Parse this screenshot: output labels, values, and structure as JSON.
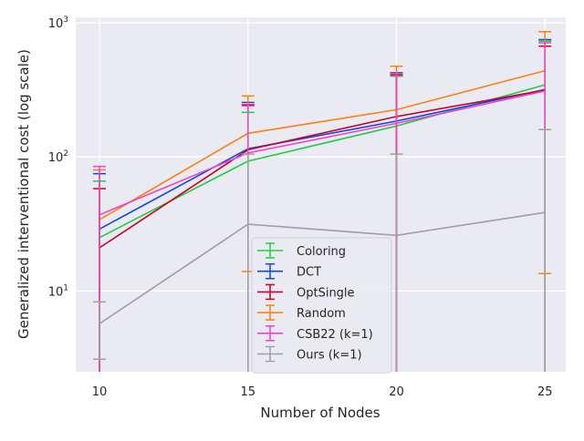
{
  "chart_data": {
    "type": "line",
    "xlabel": "Number of Nodes",
    "ylabel": "Generalized interventional cost (log scale)",
    "y_scale": "log",
    "ylim": [
      2.5,
      1100
    ],
    "xlim": [
      9.2,
      25.7
    ],
    "x": [
      10,
      15,
      20,
      25
    ],
    "x_ticks": [
      10,
      15,
      20,
      25
    ],
    "x_tick_labels": [
      "10",
      "15",
      "20",
      "25"
    ],
    "y_ticks": [
      {
        "value": 10,
        "base": "10",
        "exp": "1"
      },
      {
        "value": 100,
        "base": "10",
        "exp": "2"
      },
      {
        "value": 1000,
        "base": "10",
        "exp": "3"
      }
    ],
    "grid": true,
    "legend_position": "lower-center",
    "series": [
      {
        "name": "Coloring",
        "color": "#22cc44",
        "values": [
          25,
          93,
          170,
          345
        ],
        "err_low": [
          2.5,
          2.5,
          2.5,
          2.5
        ],
        "err_high": [
          66,
          215,
          400,
          730
        ]
      },
      {
        "name": "DCT",
        "color": "#1144ee",
        "values": [
          29,
          115,
          185,
          318
        ],
        "err_low": [
          2.5,
          2.5,
          2.5,
          2.5
        ],
        "err_high": [
          75,
          255,
          425,
          750
        ]
      },
      {
        "name": "OptSingle",
        "color": "#cc0022",
        "values": [
          21,
          113,
          200,
          315
        ],
        "err_low": [
          2.5,
          2.5,
          2.5,
          2.5
        ],
        "err_high": [
          58,
          245,
          410,
          670
        ]
      },
      {
        "name": "Random",
        "color": "#ff7f0e",
        "values": [
          34,
          150,
          225,
          440
        ],
        "err_low": [
          2.5,
          14,
          2.5,
          13.5
        ],
        "err_high": [
          80,
          285,
          475,
          860
        ]
      },
      {
        "name": "CSB22 (k=1)",
        "color": "#ee44cc",
        "values": [
          37,
          107,
          178,
          310
        ],
        "err_low": [
          2.5,
          2.5,
          2.5,
          2.5
        ],
        "err_high": [
          85,
          240,
          420,
          710
        ]
      },
      {
        "name": "Ours (k=1)",
        "color": "#a0a0a0",
        "values": [
          5.7,
          31.5,
          26,
          38.5
        ],
        "err_low": [
          3.1,
          2.5,
          2.5,
          2.5
        ],
        "err_high": [
          8.3,
          105,
          105,
          160
        ]
      }
    ]
  }
}
